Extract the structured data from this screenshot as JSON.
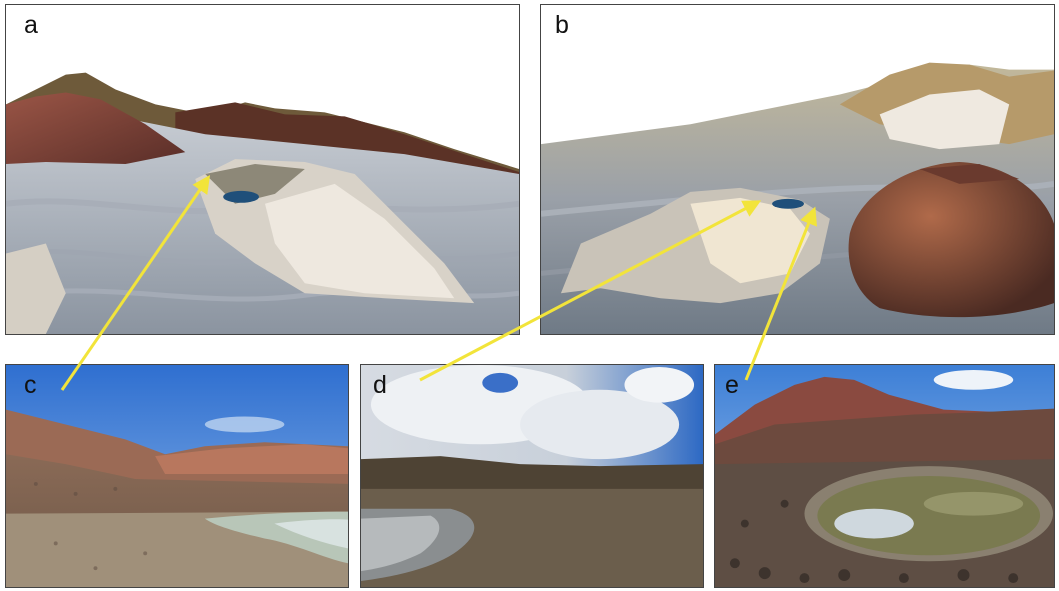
{
  "panels": {
    "a": {
      "label": "a"
    },
    "b": {
      "label": "b"
    },
    "c": {
      "label": "c"
    },
    "d": {
      "label": "d"
    },
    "e": {
      "label": "e"
    }
  },
  "colors": {
    "arrow": "#f2e43a",
    "sky": "#4a86d8",
    "terrain": "#b9bdc4",
    "cone": "#8a4a3a",
    "lake": "#1f4f7a"
  }
}
